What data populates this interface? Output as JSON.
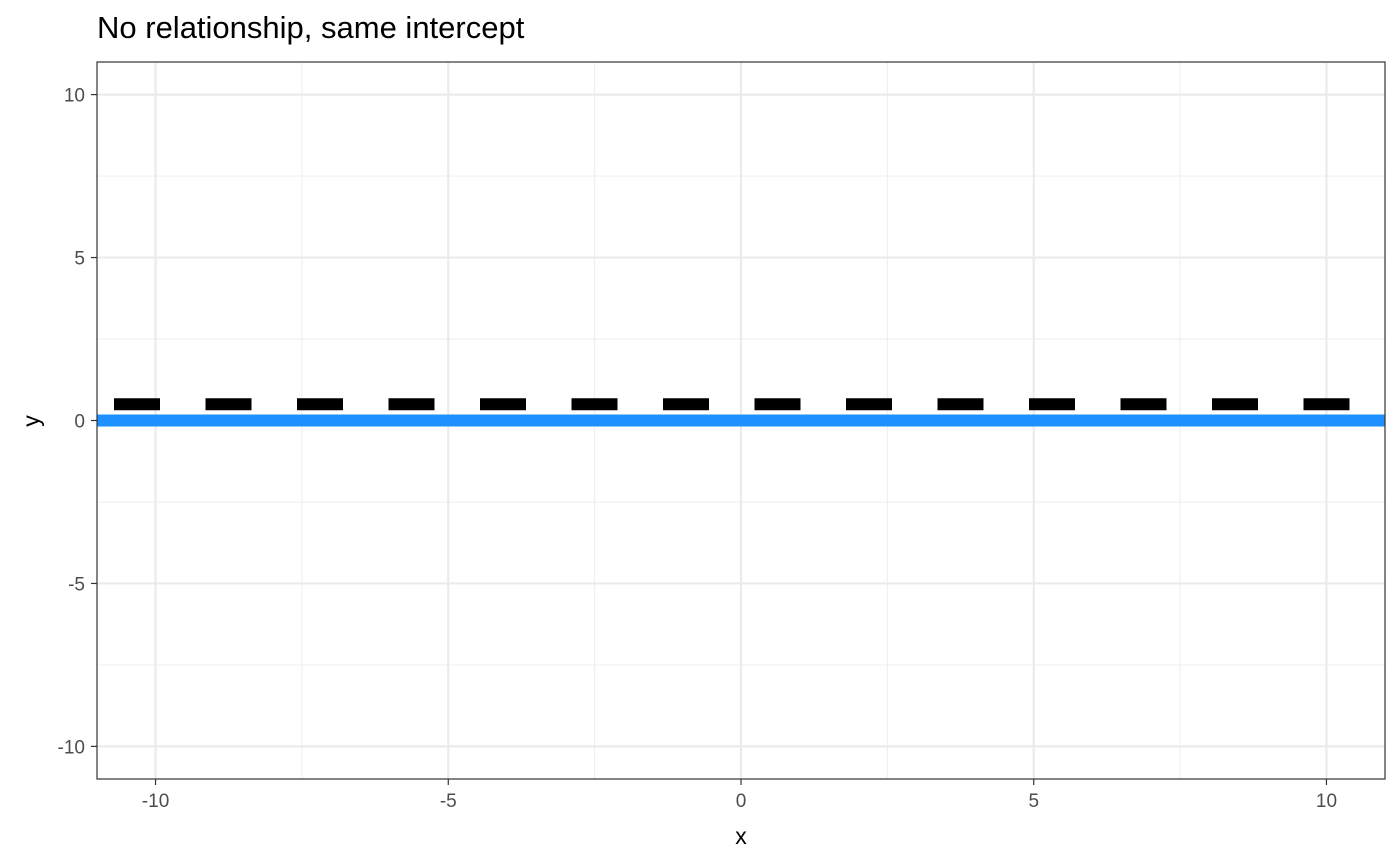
{
  "chart_data": {
    "type": "line",
    "title": "No relationship, same intercept",
    "xlabel": "x",
    "ylabel": "y",
    "xlim": [
      -11,
      11
    ],
    "ylim": [
      -11,
      11
    ],
    "x_ticks": [
      -10,
      -5,
      0,
      5,
      10
    ],
    "x_tick_labels": [
      "-10",
      "-5",
      "0",
      "5",
      "10"
    ],
    "y_ticks": [
      -10,
      -5,
      0,
      5,
      10
    ],
    "y_tick_labels": [
      "-10",
      "-5",
      "0",
      "5",
      "10"
    ],
    "grid": true,
    "legend": "none",
    "series": [
      {
        "style": "dashed",
        "color": "#000000",
        "x": [
          -11,
          11
        ],
        "y": [
          0.5,
          0.5
        ]
      },
      {
        "style": "solid",
        "color": "#1e90ff",
        "x": [
          -11,
          11
        ],
        "y": [
          0,
          0
        ]
      }
    ]
  }
}
